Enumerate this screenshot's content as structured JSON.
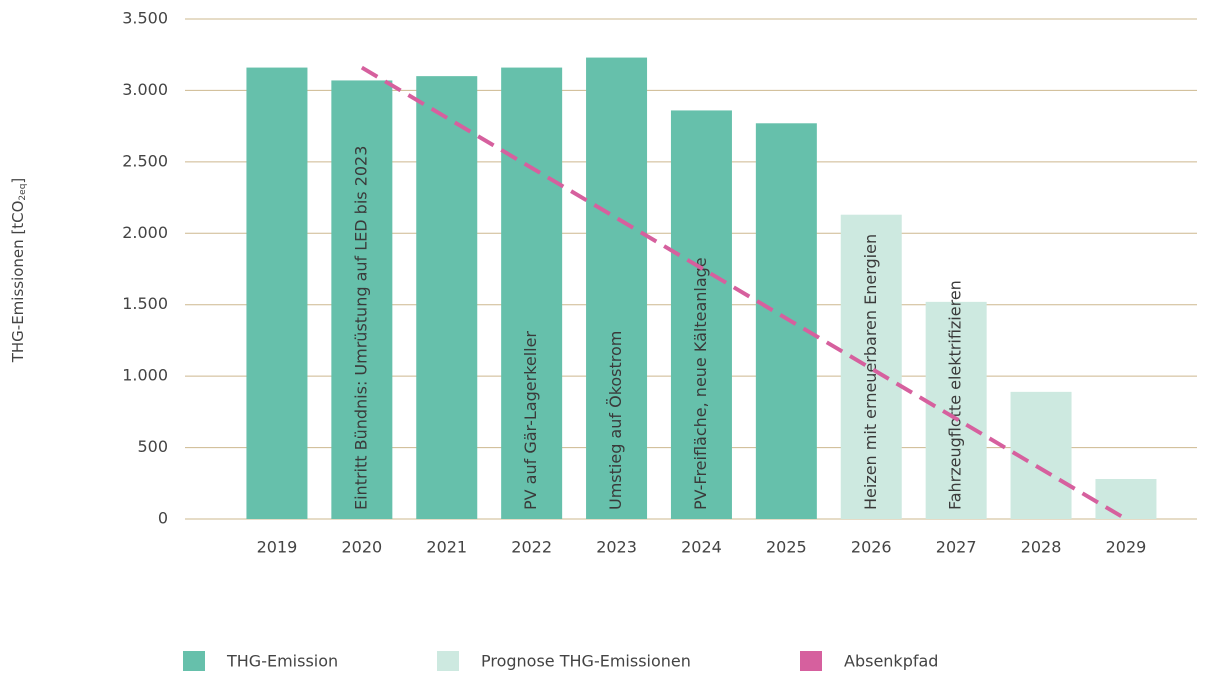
{
  "chart_data": {
    "type": "bar",
    "y_label": {
      "text": "THG-Emissionen [tCO",
      "sub": "2eq",
      "end": "]"
    },
    "categories": [
      "2019",
      "2020",
      "2021",
      "2022",
      "2023",
      "2024",
      "2025",
      "2026",
      "2027",
      "2028",
      "2029"
    ],
    "series": [
      {
        "name": "THG-Emission",
        "color": "#66c0ab",
        "values": [
          3160,
          3070,
          3100,
          3160,
          3230,
          2860,
          2770,
          null,
          null,
          null,
          null
        ]
      },
      {
        "name": "Prognose THG-Emissionen",
        "color": "#cde9e0",
        "values": [
          null,
          null,
          null,
          null,
          null,
          null,
          null,
          2130,
          1520,
          890,
          280
        ]
      },
      {
        "name": "Absenkpfad",
        "type": "line",
        "color": "#d6609e",
        "values": [
          null,
          3160,
          2809,
          2458,
          2107,
          1756,
          1404,
          1053,
          702,
          351,
          0
        ]
      }
    ],
    "annotations": [
      null,
      "Eintritt Bündnis: Umrüstung auf LED bis 2023",
      null,
      "PV auf Gär-Lagerkeller",
      "Umstieg auf Ökostrom",
      "PV-Freifläche, neue Kälteanlage",
      null,
      "Heizen mit erneuerbaren Energien",
      "Fahrzeugflotte elektrifizieren",
      null,
      null
    ],
    "ylim": [
      0,
      3500
    ],
    "yticks": [
      0,
      500,
      {
        "value": 1000,
        "label": "1.000"
      },
      {
        "value": 1500,
        "label": "1.500"
      },
      {
        "value": 2000,
        "label": "2.000"
      },
      {
        "value": 2500,
        "label": "2.500"
      },
      {
        "value": 3000,
        "label": "3.000"
      },
      {
        "value": 3500,
        "label": "3.500"
      }
    ],
    "grid": true,
    "grid_color": "#cdb88f",
    "legend": "bottom"
  }
}
